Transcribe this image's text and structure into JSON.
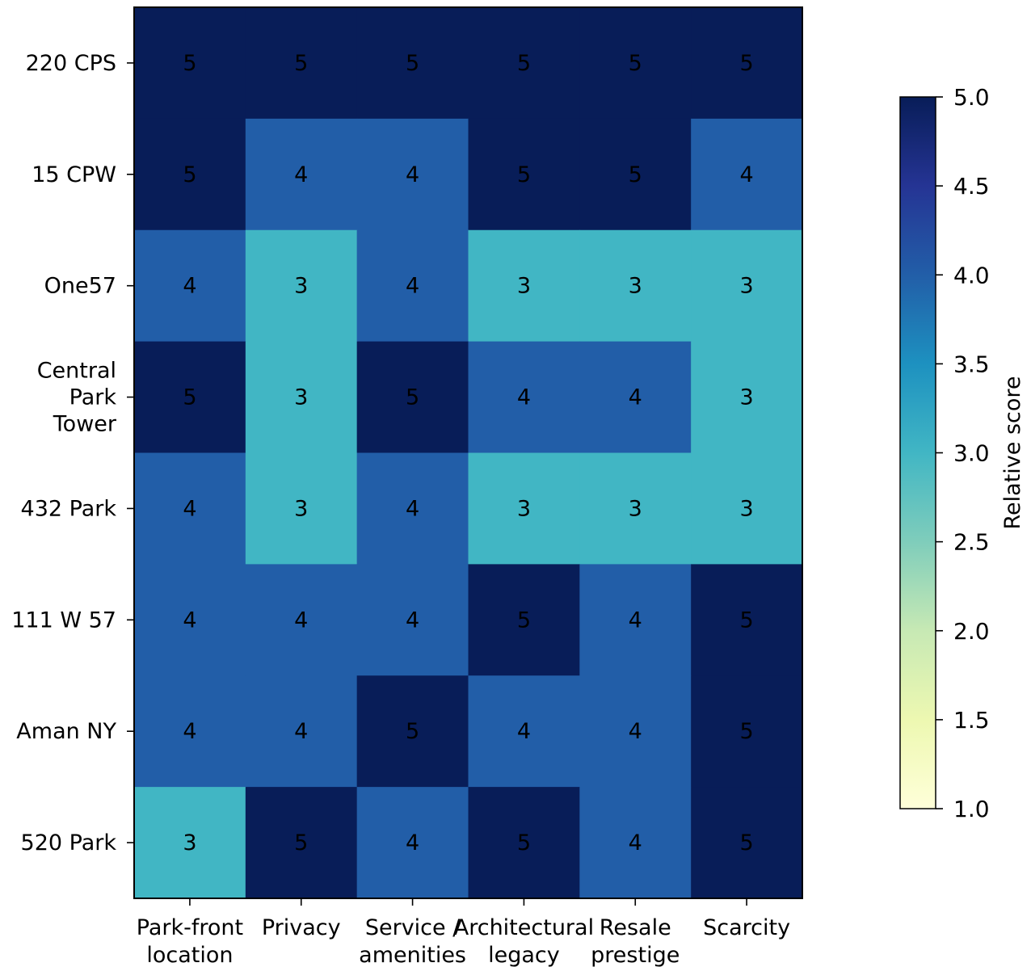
{
  "chart_data": {
    "type": "heatmap",
    "rows": [
      "220 CPS",
      "15 CPW",
      "One57",
      "Central Park Tower",
      "432 Park",
      "111 W 57",
      "Aman NY",
      "520 Park"
    ],
    "row_label_lines": [
      [
        "220 CPS"
      ],
      [
        "15 CPW"
      ],
      [
        "One57"
      ],
      [
        "Central",
        "Park",
        "Tower"
      ],
      [
        "432 Park"
      ],
      [
        "111 W 57"
      ],
      [
        "Aman NY"
      ],
      [
        "520 Park"
      ]
    ],
    "columns": [
      "Park-front location",
      "Privacy",
      "Service / amenities",
      "Architectural legacy",
      "Resale prestige",
      "Scarcity"
    ],
    "column_label_lines": [
      [
        "Park-front",
        "location"
      ],
      [
        "Privacy"
      ],
      [
        "Service /",
        "amenities"
      ],
      [
        "Architectural",
        "legacy"
      ],
      [
        "Resale",
        "prestige"
      ],
      [
        "Scarcity"
      ]
    ],
    "values": [
      [
        5,
        5,
        5,
        5,
        5,
        5
      ],
      [
        5,
        4,
        4,
        5,
        5,
        4
      ],
      [
        4,
        3,
        4,
        3,
        3,
        3
      ],
      [
        5,
        3,
        5,
        4,
        4,
        3
      ],
      [
        4,
        3,
        4,
        3,
        3,
        3
      ],
      [
        4,
        4,
        4,
        5,
        4,
        5
      ],
      [
        4,
        4,
        5,
        4,
        4,
        5
      ],
      [
        3,
        5,
        4,
        5,
        4,
        5
      ]
    ],
    "colormap": "YlGnBu",
    "color_range": [
      1.0,
      5.0
    ],
    "colorbar": {
      "label": "Relative score",
      "ticks": [
        1.0,
        1.5,
        2.0,
        2.5,
        3.0,
        3.5,
        4.0,
        4.5,
        5.0
      ],
      "tick_labels": [
        "1.0",
        "1.5",
        "2.0",
        "2.5",
        "3.0",
        "3.5",
        "4.0",
        "4.5",
        "5.0"
      ],
      "stops": [
        "#ffffd9",
        "#edf8b1",
        "#c7e9b4",
        "#7fcdbb",
        "#41b6c4",
        "#1d91c0",
        "#225ea8",
        "#253494",
        "#081d58"
      ]
    },
    "cell_annotations": true,
    "title": "",
    "xlabel": "",
    "ylabel": ""
  }
}
